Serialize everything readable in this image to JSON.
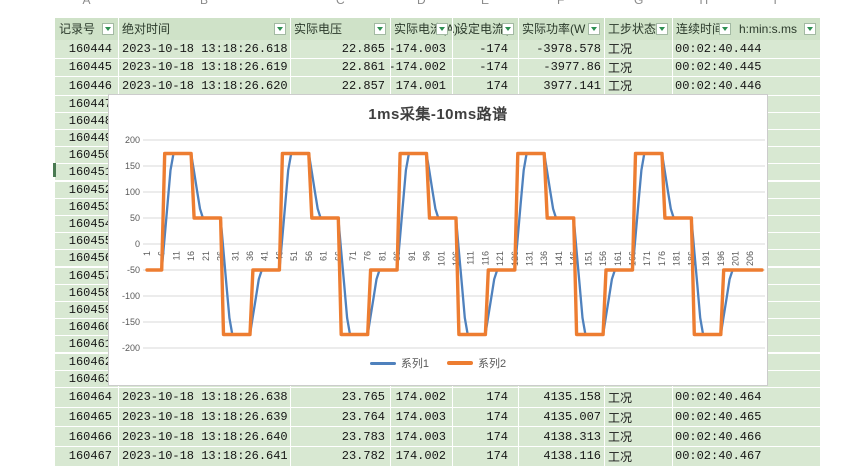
{
  "table": {
    "column_letters": [
      "A",
      "B",
      "C",
      "D",
      "E",
      "F",
      "G",
      "H",
      "I"
    ],
    "headers": [
      {
        "label": "记录号",
        "filter": true
      },
      {
        "label": "绝对时间",
        "filter": true
      },
      {
        "label": "实际电压",
        "filter": true
      },
      {
        "label": "实际电流(A)",
        "filter": true
      },
      {
        "label": "设定电流(",
        "filter": true
      },
      {
        "label": "实际功率(W",
        "filter": true
      },
      {
        "label": "工步状态",
        "filter": true
      },
      {
        "label": "连续时间",
        "filter": true
      },
      {
        "label": "h:min:s.ms",
        "filter": true
      }
    ],
    "top_rows": [
      [
        "160444",
        "2023-10-18 13:18:26.618",
        "22.865",
        "-174.003",
        "-174",
        "-3978.578",
        "工况",
        "00:02:40.444"
      ],
      [
        "160445",
        "2023-10-18 13:18:26.619",
        "22.861",
        "-174.002",
        "-174",
        "-3977.86",
        "工况",
        "00:02:40.445"
      ],
      [
        "160446",
        "2023-10-18 13:18:26.620",
        "22.857",
        "174.001",
        "174",
        "3977.141",
        "工况",
        "00:02:40.446"
      ]
    ],
    "mid_record_numbers": [
      "160447",
      "160448",
      "160449",
      "160450",
      "160451",
      "160452",
      "160453",
      "160454",
      "160455",
      "160456",
      "160457",
      "160458",
      "160459",
      "160460",
      "160461",
      "160462",
      "160463"
    ],
    "bottom_rows": [
      [
        "160464",
        "2023-10-18 13:18:26.638",
        "23.765",
        "174.002",
        "174",
        "4135.158",
        "工况",
        "00:02:40.464"
      ],
      [
        "160465",
        "2023-10-18 13:18:26.639",
        "23.764",
        "174.003",
        "174",
        "4135.007",
        "工况",
        "00:02:40.465"
      ],
      [
        "160466",
        "2023-10-18 13:18:26.640",
        "23.783",
        "174.003",
        "174",
        "4138.313",
        "工况",
        "00:02:40.466"
      ],
      [
        "160467",
        "2023-10-18 13:18:26.641",
        "23.782",
        "174.002",
        "174",
        "4138.116",
        "工况",
        "00:02:40.467"
      ]
    ],
    "colors": {
      "cell_bg": "#d8e8d2",
      "header_bg": "#cfe2c8",
      "gridline": "#ffffff",
      "filter_arrow": "#2e8f52"
    }
  },
  "chart_data": {
    "type": "line",
    "title": "1ms采集-10ms路谱",
    "legend_position": "bottom",
    "grid": "horizontal",
    "ylim": [
      -200,
      200
    ],
    "y_ticks": [
      200,
      150,
      100,
      50,
      0,
      -50,
      -100,
      -150,
      -200
    ],
    "x_range": [
      1,
      210
    ],
    "x_tick_labels": [
      "1",
      "6",
      "11",
      "16",
      "21",
      "26",
      "31",
      "36",
      "41",
      "46",
      "51",
      "56",
      "61",
      "66",
      "71",
      "76",
      "81",
      "86",
      "91",
      "96",
      "101",
      "106",
      "111",
      "116",
      "121",
      "126",
      "131",
      "136",
      "141",
      "146",
      "151",
      "156",
      "161",
      "166",
      "171",
      "176",
      "181",
      "186",
      "191",
      "196",
      "201",
      "206"
    ],
    "series": [
      {
        "name": "系列1",
        "color": "#4f81bd",
        "kind": "measured",
        "transition_cats": 3.5
      },
      {
        "name": "系列2",
        "color": "#ed7d31",
        "kind": "setpoint-step"
      }
    ],
    "setpoint_segments": [
      {
        "from": 1,
        "to": 6,
        "value": -50
      },
      {
        "from": 7,
        "to": 16,
        "value": 174
      },
      {
        "from": 17,
        "to": 26,
        "value": 50
      },
      {
        "from": 27,
        "to": 36,
        "value": -174
      },
      {
        "from": 37,
        "to": 46,
        "value": -50
      },
      {
        "from": 47,
        "to": 56,
        "value": 174
      },
      {
        "from": 57,
        "to": 66,
        "value": 50
      },
      {
        "from": 67,
        "to": 76,
        "value": -174
      },
      {
        "from": 77,
        "to": 86,
        "value": -50
      },
      {
        "from": 87,
        "to": 96,
        "value": 174
      },
      {
        "from": 97,
        "to": 106,
        "value": 50
      },
      {
        "from": 107,
        "to": 116,
        "value": -174
      },
      {
        "from": 117,
        "to": 126,
        "value": -50
      },
      {
        "from": 127,
        "to": 136,
        "value": 174
      },
      {
        "from": 137,
        "to": 146,
        "value": 50
      },
      {
        "from": 147,
        "to": 156,
        "value": -174
      },
      {
        "from": 157,
        "to": 166,
        "value": -50
      },
      {
        "from": 167,
        "to": 176,
        "value": 174
      },
      {
        "from": 177,
        "to": 186,
        "value": 50
      },
      {
        "from": 187,
        "to": 196,
        "value": -174
      },
      {
        "from": 197,
        "to": 210,
        "value": -50
      }
    ],
    "axis_label_color": "#595959",
    "gridline_color": "#d9d9d9"
  }
}
